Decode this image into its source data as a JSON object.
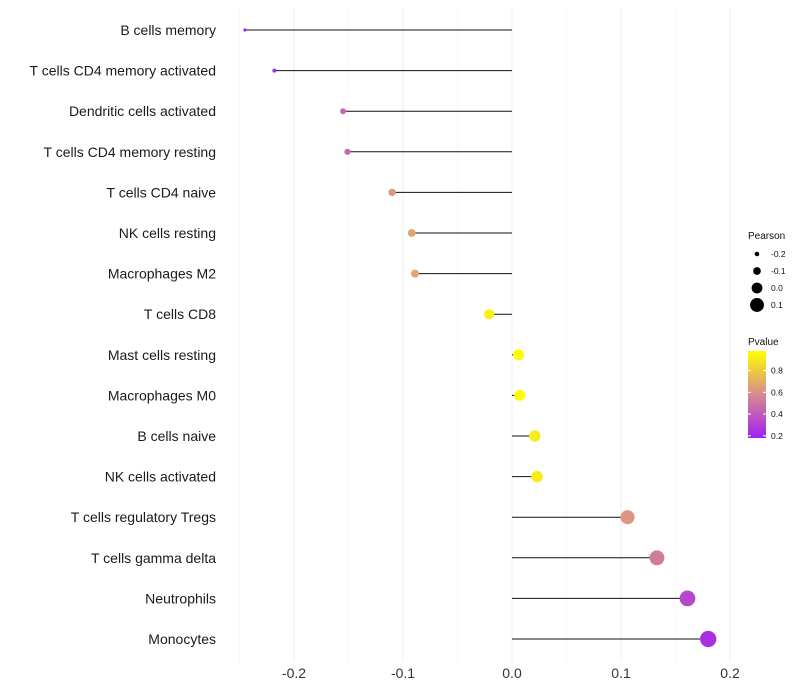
{
  "chart_data": {
    "type": "lollipop",
    "xlabel": "",
    "ylabel": "",
    "xlim": [
      -0.25,
      0.2
    ],
    "x_ticks": [
      -0.2,
      -0.1,
      0.0,
      0.1,
      0.2
    ],
    "x_tick_labels": [
      "-0.2",
      "-0.1",
      "0.0",
      "0.1",
      "0.2"
    ],
    "categories": [
      "B cells memory",
      "T cells CD4 memory activated",
      "Dendritic cells activated",
      "T cells CD4 memory resting",
      "T cells CD4 naive",
      "NK cells resting",
      "Macrophages M2",
      "T cells CD8",
      "Mast cells resting",
      "Macrophages M0",
      "B cells naive",
      "NK cells activated",
      "T cells regulatory  Tregs",
      "T cells gamma delta",
      "Neutrophils",
      "Monocytes"
    ],
    "pearson": [
      -0.245,
      -0.218,
      -0.155,
      -0.151,
      -0.11,
      -0.092,
      -0.089,
      -0.021,
      0.006,
      0.007,
      0.021,
      0.023,
      0.106,
      0.133,
      0.161,
      0.18
    ],
    "pvalue": [
      0.2,
      0.22,
      0.45,
      0.45,
      0.62,
      0.68,
      0.68,
      0.93,
      0.97,
      0.97,
      0.92,
      0.91,
      0.62,
      0.52,
      0.33,
      0.24
    ],
    "legend": {
      "size_title": "Pearson",
      "size_values": [
        -0.2,
        -0.1,
        0.0,
        0.1
      ],
      "size_labels": [
        "-0.2",
        "-0.1",
        "0.0",
        "0.1"
      ],
      "color_title": "Pvalue",
      "color_range": [
        0.18,
        0.98
      ],
      "color_ticks": [
        0.2,
        0.4,
        0.6,
        0.8
      ],
      "color_tick_labels": [
        "0.2",
        "0.4",
        "0.6",
        "0.8"
      ],
      "color_low": "#a020f0",
      "color_mid": "#d88a90",
      "color_high": "#ffff00"
    }
  }
}
